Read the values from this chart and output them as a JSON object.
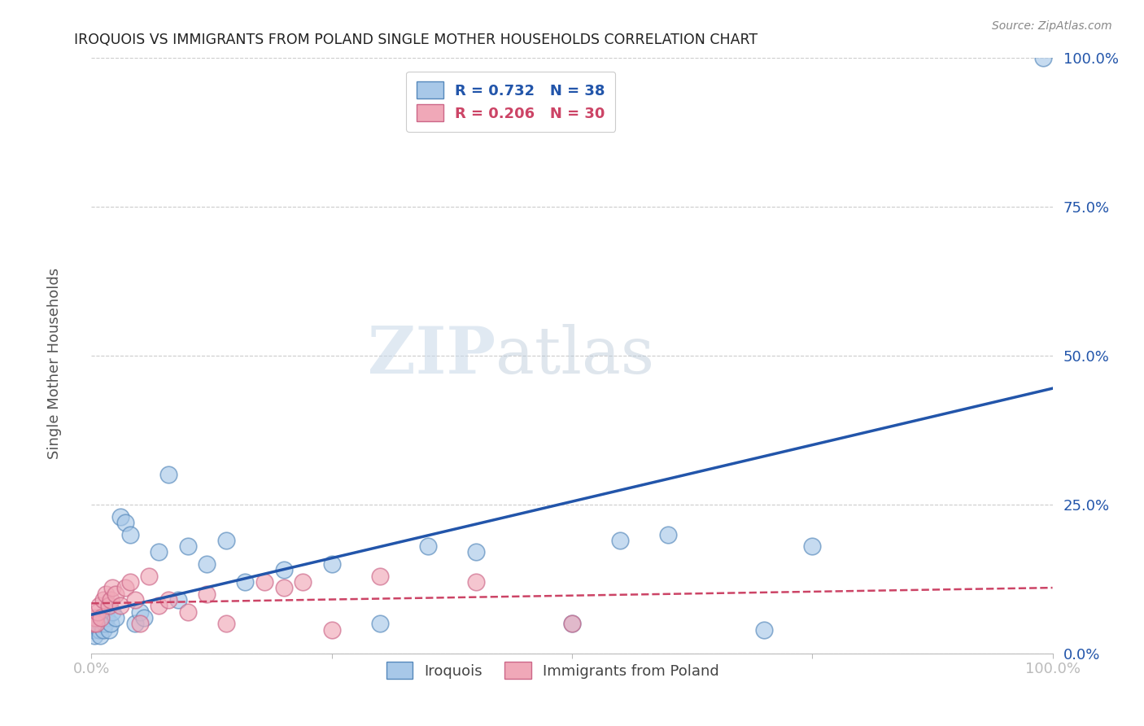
{
  "title": "IROQUOIS VS IMMIGRANTS FROM POLAND SINGLE MOTHER HOUSEHOLDS CORRELATION CHART",
  "source": "Source: ZipAtlas.com",
  "ylabel": "Single Mother Households",
  "ytick_positions": [
    0,
    25,
    50,
    75,
    100
  ],
  "legend_label1": "Iroquois",
  "legend_label2": "Immigrants from Poland",
  "R1": 0.732,
  "N1": 38,
  "R2": 0.206,
  "N2": 30,
  "color_blue": "#a8c8e8",
  "color_blue_edge": "#5588bb",
  "color_blue_line": "#2255aa",
  "color_pink": "#f0a8b8",
  "color_pink_edge": "#cc6688",
  "color_pink_line": "#cc4466",
  "watermark_zip": "ZIP",
  "watermark_atlas": "atlas",
  "xlim": [
    0,
    100
  ],
  "ylim": [
    0,
    100
  ],
  "iroquois_x": [
    0.2,
    0.3,
    0.5,
    0.6,
    0.8,
    0.9,
    1.0,
    1.2,
    1.4,
    1.6,
    1.8,
    2.0,
    2.2,
    2.5,
    3.0,
    3.5,
    4.0,
    4.5,
    5.0,
    5.5,
    7.0,
    8.0,
    9.0,
    10.0,
    12.0,
    14.0,
    16.0,
    20.0,
    25.0,
    30.0,
    35.0,
    40.0,
    50.0,
    55.0,
    60.0,
    70.0,
    75.0,
    99.0
  ],
  "iroquois_y": [
    4.0,
    3.0,
    5.0,
    6.0,
    4.0,
    3.0,
    5.0,
    4.0,
    5.0,
    6.0,
    4.0,
    5.0,
    7.0,
    6.0,
    23.0,
    22.0,
    20.0,
    5.0,
    7.0,
    6.0,
    17.0,
    30.0,
    9.0,
    18.0,
    15.0,
    19.0,
    12.0,
    14.0,
    15.0,
    5.0,
    18.0,
    17.0,
    5.0,
    19.0,
    20.0,
    4.0,
    18.0,
    100.0
  ],
  "poland_x": [
    0.2,
    0.4,
    0.5,
    0.6,
    0.8,
    1.0,
    1.2,
    1.5,
    1.8,
    2.0,
    2.2,
    2.5,
    3.0,
    3.5,
    4.0,
    4.5,
    5.0,
    6.0,
    7.0,
    8.0,
    10.0,
    12.0,
    14.0,
    18.0,
    20.0,
    22.0,
    25.0,
    30.0,
    40.0,
    50.0
  ],
  "poland_y": [
    5.0,
    6.0,
    5.0,
    7.0,
    8.0,
    6.0,
    9.0,
    10.0,
    8.0,
    9.0,
    11.0,
    10.0,
    8.0,
    11.0,
    12.0,
    9.0,
    5.0,
    13.0,
    8.0,
    9.0,
    7.0,
    10.0,
    5.0,
    12.0,
    11.0,
    12.0,
    4.0,
    13.0,
    12.0,
    5.0
  ]
}
